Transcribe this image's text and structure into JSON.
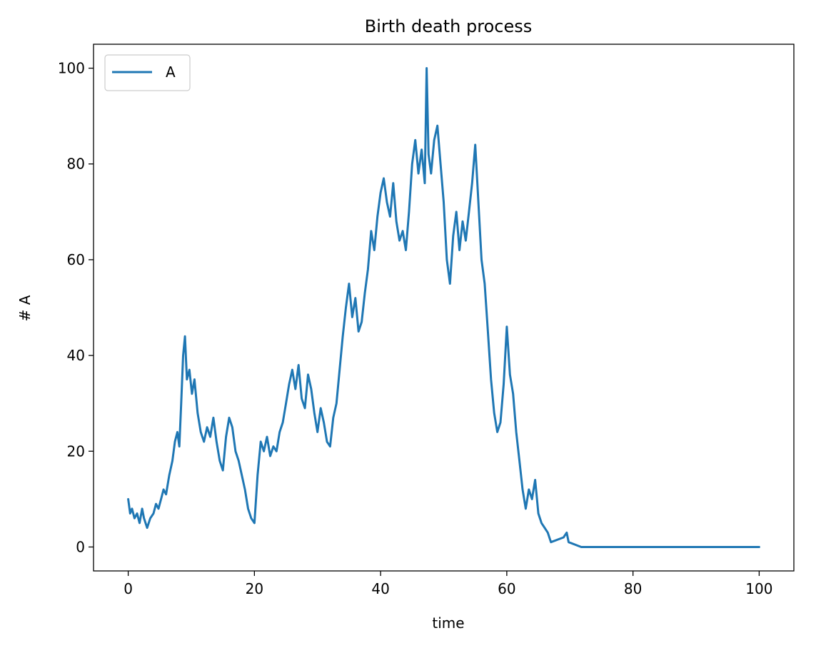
{
  "chart_data": {
    "type": "line",
    "title": "Birth death process",
    "xlabel": "time",
    "ylabel": "# A",
    "xlim": [
      -5.5,
      105.5
    ],
    "ylim": [
      -5,
      105
    ],
    "xticks": [
      0,
      20,
      40,
      60,
      80,
      100
    ],
    "yticks": [
      0,
      20,
      40,
      60,
      80,
      100
    ],
    "grid": false,
    "legend_position": "top-left",
    "series": [
      {
        "name": "A",
        "color": "#1f77b4",
        "points": [
          [
            0,
            10
          ],
          [
            0.3,
            7
          ],
          [
            0.6,
            8
          ],
          [
            1.0,
            6
          ],
          [
            1.4,
            7
          ],
          [
            1.8,
            5
          ],
          [
            2.2,
            8
          ],
          [
            2.5,
            6
          ],
          [
            3.0,
            4
          ],
          [
            3.5,
            6
          ],
          [
            4.0,
            7
          ],
          [
            4.4,
            9
          ],
          [
            4.8,
            8
          ],
          [
            5.2,
            10
          ],
          [
            5.6,
            12
          ],
          [
            6.0,
            11
          ],
          [
            6.5,
            15
          ],
          [
            7.0,
            18
          ],
          [
            7.4,
            22
          ],
          [
            7.8,
            24
          ],
          [
            8.1,
            21
          ],
          [
            8.4,
            30
          ],
          [
            8.7,
            40
          ],
          [
            9.0,
            44
          ],
          [
            9.3,
            35
          ],
          [
            9.7,
            37
          ],
          [
            10.1,
            32
          ],
          [
            10.5,
            35
          ],
          [
            11.0,
            28
          ],
          [
            11.5,
            24
          ],
          [
            12.0,
            22
          ],
          [
            12.5,
            25
          ],
          [
            13.0,
            23
          ],
          [
            13.5,
            27
          ],
          [
            14.0,
            22
          ],
          [
            14.5,
            18
          ],
          [
            15.0,
            16
          ],
          [
            15.5,
            23
          ],
          [
            16.0,
            27
          ],
          [
            16.5,
            25
          ],
          [
            17.0,
            20
          ],
          [
            17.5,
            18
          ],
          [
            18.0,
            15
          ],
          [
            18.5,
            12
          ],
          [
            19.0,
            8
          ],
          [
            19.5,
            6
          ],
          [
            20.0,
            5
          ],
          [
            20.5,
            15
          ],
          [
            21.0,
            22
          ],
          [
            21.5,
            20
          ],
          [
            22.0,
            23
          ],
          [
            22.5,
            19
          ],
          [
            23.0,
            21
          ],
          [
            23.5,
            20
          ],
          [
            24.0,
            24
          ],
          [
            24.5,
            26
          ],
          [
            25.0,
            30
          ],
          [
            25.5,
            34
          ],
          [
            26.0,
            37
          ],
          [
            26.5,
            33
          ],
          [
            27.0,
            38
          ],
          [
            27.5,
            31
          ],
          [
            28.0,
            29
          ],
          [
            28.5,
            36
          ],
          [
            29.0,
            33
          ],
          [
            29.5,
            28
          ],
          [
            30.0,
            24
          ],
          [
            30.5,
            29
          ],
          [
            31.0,
            26
          ],
          [
            31.5,
            22
          ],
          [
            32.0,
            21
          ],
          [
            32.5,
            27
          ],
          [
            33.0,
            30
          ],
          [
            33.5,
            37
          ],
          [
            34.0,
            44
          ],
          [
            34.5,
            50
          ],
          [
            35.0,
            55
          ],
          [
            35.5,
            48
          ],
          [
            36.0,
            52
          ],
          [
            36.5,
            45
          ],
          [
            37.0,
            47
          ],
          [
            37.5,
            53
          ],
          [
            38.0,
            58
          ],
          [
            38.5,
            66
          ],
          [
            39.0,
            62
          ],
          [
            39.5,
            69
          ],
          [
            40.0,
            74
          ],
          [
            40.5,
            77
          ],
          [
            41.0,
            72
          ],
          [
            41.5,
            69
          ],
          [
            42.0,
            76
          ],
          [
            42.5,
            68
          ],
          [
            43.0,
            64
          ],
          [
            43.5,
            66
          ],
          [
            44.0,
            62
          ],
          [
            44.5,
            70
          ],
          [
            45.0,
            80
          ],
          [
            45.5,
            85
          ],
          [
            46.0,
            78
          ],
          [
            46.5,
            83
          ],
          [
            47.0,
            76
          ],
          [
            47.3,
            100
          ],
          [
            47.6,
            82
          ],
          [
            48.0,
            78
          ],
          [
            48.5,
            85
          ],
          [
            49.0,
            88
          ],
          [
            49.5,
            80
          ],
          [
            50.0,
            72
          ],
          [
            50.5,
            60
          ],
          [
            51.0,
            55
          ],
          [
            51.5,
            65
          ],
          [
            52.0,
            70
          ],
          [
            52.5,
            62
          ],
          [
            53.0,
            68
          ],
          [
            53.5,
            64
          ],
          [
            54.0,
            70
          ],
          [
            54.5,
            76
          ],
          [
            55.0,
            84
          ],
          [
            55.5,
            72
          ],
          [
            56.0,
            60
          ],
          [
            56.5,
            55
          ],
          [
            57.0,
            45
          ],
          [
            57.5,
            35
          ],
          [
            58.0,
            28
          ],
          [
            58.5,
            24
          ],
          [
            59.0,
            26
          ],
          [
            59.5,
            34
          ],
          [
            60.0,
            46
          ],
          [
            60.5,
            36
          ],
          [
            61.0,
            32
          ],
          [
            61.5,
            24
          ],
          [
            62.0,
            18
          ],
          [
            62.5,
            12
          ],
          [
            63.0,
            8
          ],
          [
            63.5,
            12
          ],
          [
            64.0,
            10
          ],
          [
            64.5,
            14
          ],
          [
            65.0,
            7
          ],
          [
            65.5,
            5
          ],
          [
            66.0,
            4
          ],
          [
            66.5,
            3
          ],
          [
            67.0,
            1
          ],
          [
            69.0,
            2
          ],
          [
            69.5,
            3
          ],
          [
            69.8,
            1
          ],
          [
            71.8,
            0
          ],
          [
            100,
            0
          ]
        ]
      }
    ]
  }
}
